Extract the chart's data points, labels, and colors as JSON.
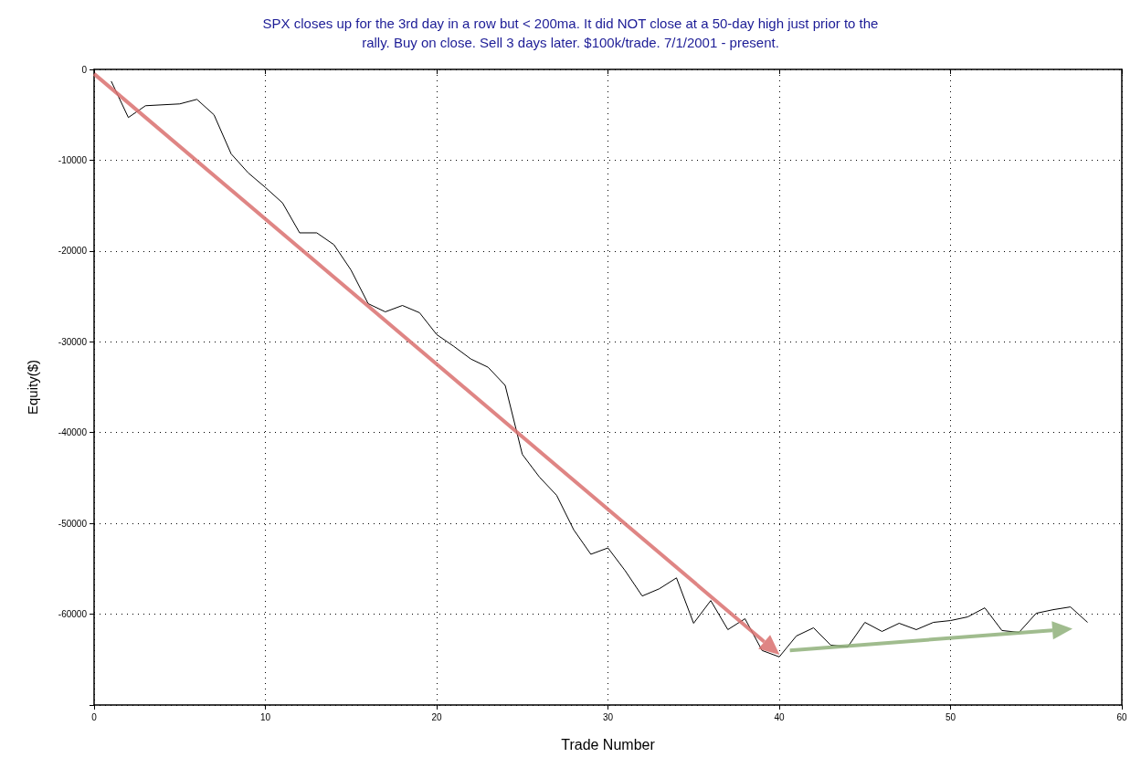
{
  "chart_data": {
    "type": "line",
    "title": "SPX closes up for the 3rd day in a row but < 200ma. It did NOT close at a 50-day high just prior to the\nrally. Buy on close. Sell 3 days later. $100k/trade. 7/1/2001 - present.",
    "xlabel": "Trade Number",
    "ylabel": "Equity($)",
    "x": [
      1,
      2,
      3,
      4,
      5,
      6,
      7,
      8,
      9,
      10,
      11,
      12,
      13,
      14,
      15,
      16,
      17,
      18,
      19,
      20,
      21,
      22,
      23,
      24,
      25,
      26,
      27,
      28,
      29,
      30,
      31,
      32,
      33,
      34,
      35,
      36,
      37,
      38,
      39,
      40,
      41,
      42,
      43,
      44,
      45,
      46,
      47,
      48,
      49,
      50,
      51,
      52,
      53,
      54,
      55,
      56,
      57,
      58
    ],
    "series": [
      {
        "color": "#000000",
        "values": [
          -1300,
          -5300,
          -4000,
          -3900,
          -3800,
          -3300,
          -5000,
          -9300,
          -11400,
          -13000,
          -14700,
          -18000,
          -18000,
          -19300,
          -22100,
          -25800,
          -26700,
          -26000,
          -26800,
          -29200,
          -30500,
          -31900,
          -32800,
          -34800,
          -42400,
          -44900,
          -46900,
          -50700,
          -53400,
          -52700,
          -55200,
          -58000,
          -57200,
          -56000,
          -61000,
          -58500,
          -61700,
          -60500,
          -64000,
          -64700,
          -62400,
          -61500,
          -63400,
          -63600,
          -60900,
          -61900,
          -61000,
          -61700,
          -60900,
          -60700,
          -60300,
          -59300,
          -61800,
          -62000,
          -59900,
          -59500,
          -59200,
          -60900
        ]
      }
    ],
    "xlim": [
      0,
      60
    ],
    "xticks": [
      0,
      10,
      20,
      30,
      40,
      50,
      60
    ],
    "ylim": [
      -70000,
      0
    ],
    "yticks": [
      0,
      -10000,
      -20000,
      -30000,
      -40000,
      -50000,
      -60000,
      {
        "value": -70000,
        "label": null
      }
    ],
    "grid": true,
    "marker": "none",
    "line_style": "solid"
  }
}
